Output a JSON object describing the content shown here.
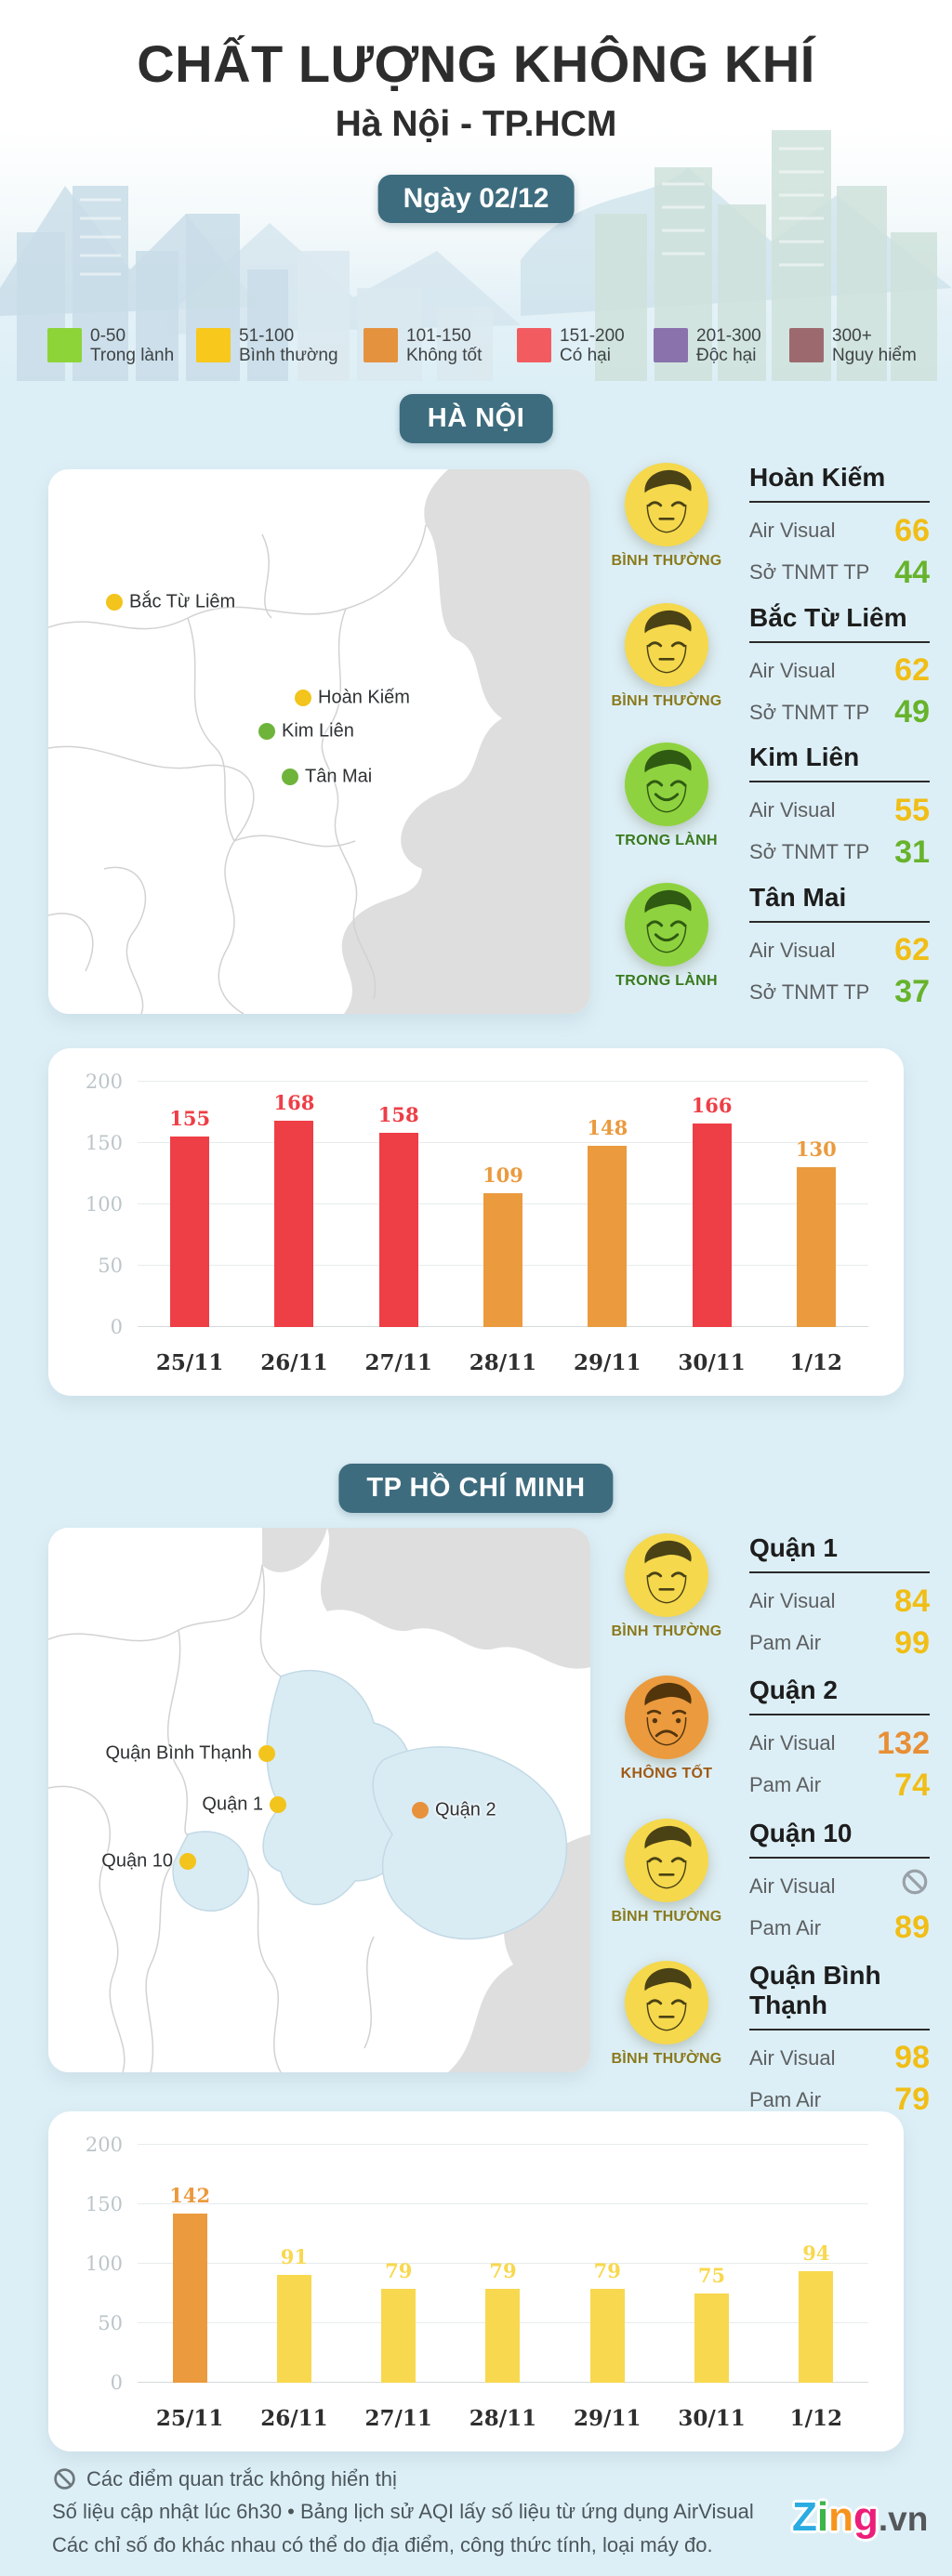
{
  "header": {
    "title": "CHẤT LƯỢNG KHÔNG KHÍ",
    "subtitle": "Hà Nội - TP.HCM",
    "date_badge": "Ngày 02/12"
  },
  "palette": {
    "yellow": "#f0be16",
    "green": "#67b32c",
    "orange": "#e88f35",
    "red": "#ee3e46",
    "barYellow": "#f8d84e",
    "barOrange": "#eb9a3e",
    "barRed": "#ee3e46",
    "statusNormal": "#8a7a1c",
    "statusGood": "#3a7a1e",
    "statusBad": "#a05a14",
    "teal": "#3d6c7e",
    "nodataGray": "#99a1a7"
  },
  "legend": {
    "items": [
      {
        "range": "0-50",
        "label": "Trong lành",
        "color": "#8dd438"
      },
      {
        "range": "51-100",
        "label": "Bình thường",
        "color": "#f8c81c"
      },
      {
        "range": "101-150",
        "label": "Không tốt",
        "color": "#e4923e"
      },
      {
        "range": "151-200",
        "label": "Có hại",
        "color": "#f25c61"
      },
      {
        "range": "201-300",
        "label": "Độc hại",
        "color": "#8a72ad"
      },
      {
        "range": "300+",
        "label": "Nguy hiểm",
        "color": "#9c6a6e"
      }
    ]
  },
  "hanoi": {
    "badge": "HÀ NỘI",
    "map_markers": [
      {
        "name": "Bắc Từ Liêm",
        "x": 71,
        "y": 143,
        "color": "#f2c41c",
        "side": "right"
      },
      {
        "name": "Hoàn Kiếm",
        "x": 274,
        "y": 246,
        "color": "#f2c41c",
        "side": "right"
      },
      {
        "name": "Kim Liên",
        "x": 235,
        "y": 282,
        "color": "#6fb43a",
        "side": "right"
      },
      {
        "name": "Tân Mai",
        "x": 260,
        "y": 331,
        "color": "#6fb43a",
        "side": "right"
      }
    ],
    "stations": [
      {
        "name": "Hoàn Kiếm",
        "status": "BÌNH THƯỜNG",
        "status_color": "statusNormal",
        "face": "neutral",
        "rows": [
          {
            "label": "Air Visual",
            "value": "66",
            "color": "yellow"
          },
          {
            "label": "Sở TNMT TP",
            "value": "44",
            "color": "green"
          }
        ]
      },
      {
        "name": "Bắc Từ Liêm",
        "status": "BÌNH THƯỜNG",
        "status_color": "statusNormal",
        "face": "neutral",
        "rows": [
          {
            "label": "Air Visual",
            "value": "62",
            "color": "yellow"
          },
          {
            "label": "Sở TNMT TP",
            "value": "49",
            "color": "green"
          }
        ]
      },
      {
        "name": "Kim Liên",
        "status": "TRONG LÀNH",
        "status_color": "statusGood",
        "face": "happy",
        "rows": [
          {
            "label": "Air Visual",
            "value": "55",
            "color": "yellow"
          },
          {
            "label": "Sở TNMT TP",
            "value": "31",
            "color": "green"
          }
        ]
      },
      {
        "name": "Tân Mai",
        "status": "TRONG LÀNH",
        "status_color": "statusGood",
        "face": "happy",
        "rows": [
          {
            "label": "Air Visual",
            "value": "62",
            "color": "yellow"
          },
          {
            "label": "Sở TNMT TP",
            "value": "37",
            "color": "green"
          }
        ]
      }
    ]
  },
  "hcmc": {
    "badge": "TP HỒ CHÍ MINH",
    "map_markers": [
      {
        "name": "Quận Bình Thạnh",
        "x": 235,
        "y": 243,
        "color": "#f2c41c",
        "side": "left"
      },
      {
        "name": "Quận 1",
        "x": 247,
        "y": 298,
        "color": "#f2c41c",
        "side": "left"
      },
      {
        "name": "Quận 2",
        "x": 400,
        "y": 304,
        "color": "#e8913c",
        "side": "right"
      },
      {
        "name": "Quận 10",
        "x": 150,
        "y": 359,
        "color": "#f2c41c",
        "side": "left"
      }
    ],
    "stations": [
      {
        "name": "Quận 1",
        "status": "BÌNH THƯỜNG",
        "status_color": "statusNormal",
        "face": "neutral",
        "rows": [
          {
            "label": "Air Visual",
            "value": "84",
            "color": "yellow"
          },
          {
            "label": "Pam Air",
            "value": "99",
            "color": "yellow"
          }
        ]
      },
      {
        "name": "Quận 2",
        "status": "KHÔNG TỐT",
        "status_color": "statusBad",
        "face": "sad",
        "rows": [
          {
            "label": "Air Visual",
            "value": "132",
            "color": "orange"
          },
          {
            "label": "Pam Air",
            "value": "74",
            "color": "yellow"
          }
        ]
      },
      {
        "name": "Quận 10",
        "status": "BÌNH THƯỜNG",
        "status_color": "statusNormal",
        "face": "neutral",
        "rows": [
          {
            "label": "Air Visual",
            "value": "",
            "color": "nodata"
          },
          {
            "label": "Pam Air",
            "value": "89",
            "color": "yellow"
          }
        ]
      },
      {
        "name": "Quận Bình Thạnh",
        "status": "BÌNH THƯỜNG",
        "status_color": "statusNormal",
        "face": "neutral",
        "rows": [
          {
            "label": "Air Visual",
            "value": "98",
            "color": "yellow"
          },
          {
            "label": "Pam Air",
            "value": "79",
            "color": "yellow"
          }
        ]
      }
    ]
  },
  "chart_data": [
    {
      "type": "bar",
      "city": "Hà Nội",
      "categories": [
        "25/11",
        "26/11",
        "27/11",
        "28/11",
        "29/11",
        "30/11",
        "1/12"
      ],
      "values": [
        155,
        168,
        158,
        109,
        148,
        166,
        130
      ],
      "colors": [
        "barRed",
        "barRed",
        "barRed",
        "barOrange",
        "barOrange",
        "barRed",
        "barOrange"
      ],
      "yticks": [
        0,
        50,
        100,
        150,
        200
      ],
      "ylim": [
        0,
        200
      ],
      "title": "",
      "xlabel": "",
      "ylabel": "",
      "grid": true,
      "legend": "none"
    },
    {
      "type": "bar",
      "city": "TP Hồ Chí Minh",
      "categories": [
        "25/11",
        "26/11",
        "27/11",
        "28/11",
        "29/11",
        "30/11",
        "1/12"
      ],
      "values": [
        142,
        91,
        79,
        79,
        79,
        75,
        94
      ],
      "colors": [
        "barOrange",
        "barYellow",
        "barYellow",
        "barYellow",
        "barYellow",
        "barYellow",
        "barYellow"
      ],
      "yticks": [
        0,
        50,
        100,
        150,
        200
      ],
      "ylim": [
        0,
        200
      ],
      "title": "",
      "xlabel": "",
      "ylabel": "",
      "grid": true,
      "legend": "none"
    }
  ],
  "footer": {
    "note1": "Các điểm quan trắc không hiển thị",
    "note2": "Số liệu cập nhật lúc 6h30 • Bảng lịch sử AQI lấy số liệu từ ứng dụng AirVisual",
    "note3": "Các chỉ số đo khác nhau có thể do địa điểm, công thức tính, loại máy đo.",
    "logo": {
      "letters": [
        {
          "ch": "Z",
          "color": "#2aabe2"
        },
        {
          "ch": "i",
          "color": "#3cb54a"
        },
        {
          "ch": "n",
          "color": "#f7941e"
        },
        {
          "ch": "g",
          "color": "#ec1e79"
        }
      ],
      "suffix": ".vn"
    }
  }
}
